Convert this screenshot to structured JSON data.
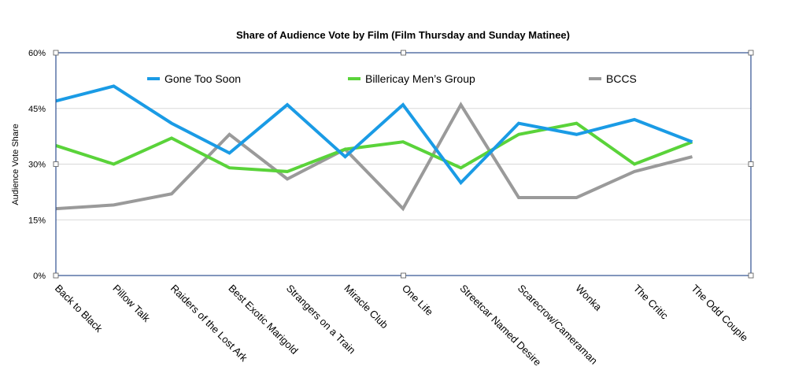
{
  "chart_data": {
    "type": "line",
    "title": "Share of Audience Vote by Film (Film Thursday and Sunday Matinee)",
    "xlabel": "",
    "ylabel": "Audience Vote Share",
    "ylim": [
      0,
      60
    ],
    "yticks": [
      0,
      15,
      30,
      45,
      60
    ],
    "ytick_labels": [
      "0%",
      "15%",
      "30%",
      "45%",
      "60%"
    ],
    "grid": true,
    "legend_position": "top",
    "categories": [
      "Back to Black",
      "Pillow Talk",
      "Raiders of the Lost Ark",
      "Best Exotic Marigold",
      "Strangers on a Train",
      "Miracle Club",
      "One Life",
      "Streetcar Named Desire",
      "Scarecrow/Cameraman",
      "Wonka",
      "The Critic",
      "The Odd Couple"
    ],
    "series": [
      {
        "name": "Gone Too Soon",
        "color": "#1a9be5",
        "values": [
          47,
          51,
          41,
          33,
          46,
          32,
          46,
          25,
          41,
          38,
          42,
          36
        ]
      },
      {
        "name": "Billericay Men’s Group",
        "color": "#5ad33a",
        "values": [
          35,
          30,
          37,
          29,
          28,
          34,
          36,
          29,
          38,
          41,
          30,
          36
        ]
      },
      {
        "name": "BCCS",
        "color": "#9a9a9a",
        "values": [
          18,
          19,
          22,
          38,
          26,
          34,
          18,
          46,
          21,
          21,
          28,
          32
        ]
      }
    ]
  }
}
